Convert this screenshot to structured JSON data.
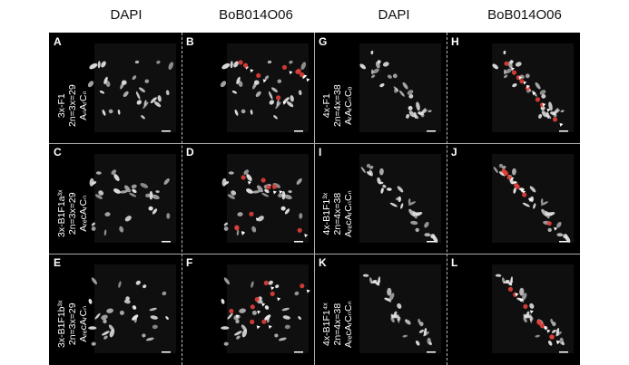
{
  "columns": [
    "DAPI",
    "BoB014O06",
    "DAPI",
    "BoB014O06"
  ],
  "panels": [
    "A",
    "B",
    "C",
    "D",
    "E",
    "F",
    "G",
    "H",
    "I",
    "J",
    "K",
    "L"
  ],
  "row_labels": {
    "A": [
      "3x-F1",
      "2n=3x=29",
      "AₙAᵣCₙ"
    ],
    "C": [
      "3x-B1F1a³ˣ",
      "2n=3x=29",
      "AᵣₑcAᵣCₙ"
    ],
    "E": [
      "3x-B1F1b³ˣ",
      "2n=3x=29",
      "AᵣₑcAᵣCₙ"
    ],
    "G": [
      "4x-F1",
      "2n=4x=38",
      "AᵣAᵣCₙCₒ"
    ],
    "I": [
      "4x-B1F1³ˣ",
      "2n=4x=38",
      "AᵣₑcAᵣCₙCₙ"
    ],
    "K": [
      "4x-B1F1⁴ˣ",
      "2n=4x=38",
      "AᵣₑcAᵣCₙCₙ"
    ]
  },
  "colors": {
    "dapi": "#e6e6e6",
    "probe": "#e0403a",
    "background": "#000000",
    "arrowhead": "#ffffff"
  }
}
